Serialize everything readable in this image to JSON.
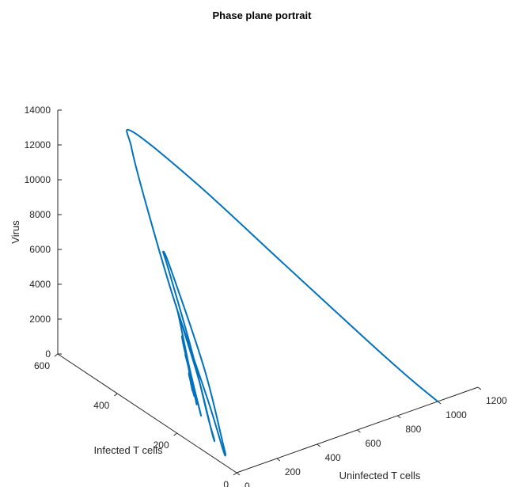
{
  "chart_data": {
    "type": "line",
    "projection": "3d",
    "title": "Phase plane portrait",
    "xlabel": "Uninfected T cells",
    "ylabel": "Infected T cells",
    "zlabel": "Virus",
    "xlim": [
      0,
      1200
    ],
    "ylim": [
      0,
      600
    ],
    "zlim": [
      0,
      14000
    ],
    "xticks": [
      0,
      200,
      400,
      600,
      800,
      1000,
      1200
    ],
    "yticks": [
      0,
      200,
      400,
      600
    ],
    "zticks": [
      0,
      2000,
      4000,
      6000,
      8000,
      10000,
      12000,
      14000
    ],
    "grid": false,
    "series_color": "#0072BD",
    "series": [
      {
        "description": "trajectory spiralling from (1000,0,0) to equilibrium near (125,230,1500)",
        "points": [
          [
            1000,
            0,
            0
          ],
          [
            920,
            40,
            1200
          ],
          [
            800,
            110,
            3200
          ],
          [
            620,
            260,
            6500
          ],
          [
            430,
            420,
            10000
          ],
          [
            290,
            545,
            12200
          ],
          [
            270,
            535,
            11500
          ],
          [
            248,
            470,
            9000
          ],
          [
            205,
            350,
            5200
          ],
          [
            140,
            190,
            1400
          ],
          [
            95,
            110,
            -300
          ],
          [
            85,
            95,
            -380
          ],
          [
            95,
            110,
            50
          ],
          [
            150,
            210,
            3000
          ],
          [
            205,
            360,
            6800
          ],
          [
            220,
            395,
            7300
          ],
          [
            210,
            370,
            6600
          ],
          [
            160,
            260,
            3500
          ],
          [
            110,
            170,
            800
          ],
          [
            95,
            140,
            0
          ],
          [
            95,
            145,
            150
          ],
          [
            130,
            215,
            2400
          ],
          [
            165,
            305,
            4900
          ],
          [
            172,
            320,
            5300
          ],
          [
            165,
            305,
            4800
          ],
          [
            135,
            250,
            2700
          ],
          [
            110,
            200,
            1000
          ],
          [
            105,
            190,
            700
          ],
          [
            112,
            205,
            1200
          ],
          [
            145,
            270,
            3200
          ],
          [
            158,
            290,
            3900
          ],
          [
            150,
            275,
            3400
          ],
          [
            130,
            240,
            2100
          ],
          [
            115,
            215,
            1300
          ],
          [
            112,
            210,
            1100
          ],
          [
            120,
            225,
            1700
          ],
          [
            140,
            260,
            2900
          ],
          [
            145,
            270,
            3100
          ],
          [
            138,
            255,
            2600
          ],
          [
            125,
            235,
            1800
          ],
          [
            118,
            222,
            1400
          ],
          [
            122,
            230,
            1650
          ],
          [
            132,
            248,
            2200
          ],
          [
            134,
            250,
            2300
          ],
          [
            128,
            240,
            1950
          ],
          [
            122,
            231,
            1600
          ],
          [
            124,
            234,
            1750
          ],
          [
            128,
            240,
            1900
          ],
          [
            126,
            237,
            1800
          ],
          [
            125,
            235,
            1780
          ]
        ]
      }
    ]
  }
}
